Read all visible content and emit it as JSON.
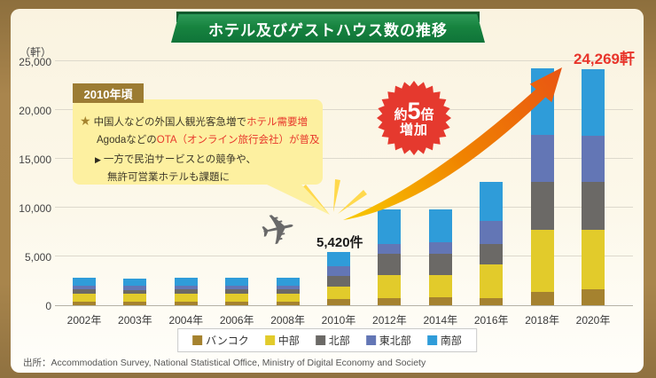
{
  "title": "ホテル及びゲストハウス数の推移",
  "colors": {
    "ribbon_green": "#157a40",
    "frame_gold": "#a8854c",
    "bubble_yellow": "#fdf0a0",
    "badge_brown": "#9c7c33",
    "red_accent": "#e8392c",
    "arrow_orange": "#f08300"
  },
  "y_axis": {
    "unit_label": "（軒）",
    "ticks": [
      {
        "label": "25,000",
        "value": 25000
      },
      {
        "label": "20,000",
        "value": 20000
      },
      {
        "label": "15,000",
        "value": 15000
      },
      {
        "label": "10,000",
        "value": 10000
      },
      {
        "label": "5,000",
        "value": 5000
      },
      {
        "label": "0",
        "value": 0
      }
    ]
  },
  "annotation": {
    "badge": "2010年頃",
    "star_marker": "★",
    "line1_prefix": "中国人などの外国人観光客急増で",
    "line1_red": "ホテル需要増",
    "line2_prefix": "Agodaなどの",
    "line2_red": "OTA（オンライン旅行会社）が普及",
    "arrow_marker": "▶",
    "line3": "一方で民泊サービスとの競争や、",
    "line4": "無許可営業ホテルも課題に"
  },
  "badge_5x": {
    "l1_prefix": "約",
    "l1_big": "5",
    "l1_suffix": "倍",
    "l2": "増加"
  },
  "callouts": {
    "value_2010": "5,420件",
    "value_peak": "24,269軒"
  },
  "icons": {
    "airplane_glyph": "✈"
  },
  "source": "出所：Accommodation Survey, National Statistical Office, Ministry of Digital Economy and Society",
  "legend": [
    {
      "label": "バンコク",
      "color": "#a5822f"
    },
    {
      "label": "中部",
      "color": "#e2cb2b"
    },
    {
      "label": "北部",
      "color": "#6b6966"
    },
    {
      "label": "東北部",
      "color": "#6376b5"
    },
    {
      "label": "南部",
      "color": "#2f9cd9"
    }
  ],
  "chart_data": {
    "type": "bar",
    "stacked": true,
    "title": "ホテル及びゲストハウス数の推移",
    "ylabel": "軒",
    "ylim": [
      0,
      25000
    ],
    "gridlines": [
      5000,
      10000,
      15000,
      20000,
      25000
    ],
    "legend_position": "bottom",
    "categories": [
      "2002年",
      "2003年",
      "2004年",
      "2006年",
      "2008年",
      "2010年",
      "2012年",
      "2014年",
      "2016年",
      "2018年",
      "2020年"
    ],
    "series": [
      {
        "name": "バンコク",
        "color": "#a5822f",
        "values": [
          360,
          350,
          360,
          360,
          360,
          600,
          750,
          800,
          760,
          1360,
          1660
        ]
      },
      {
        "name": "中部",
        "color": "#e2cb2b",
        "values": [
          820,
          790,
          800,
          810,
          800,
          1270,
          2340,
          2290,
          3430,
          6340,
          6060
        ]
      },
      {
        "name": "北部",
        "color": "#6b6966",
        "values": [
          450,
          450,
          460,
          470,
          470,
          1090,
          2210,
          2210,
          2120,
          4930,
          4940
        ]
      },
      {
        "name": "東北部",
        "color": "#6376b5",
        "values": [
          370,
          370,
          380,
          380,
          390,
          1030,
          1000,
          1150,
          2340,
          4850,
          4670
        ]
      },
      {
        "name": "南部",
        "color": "#2f9cd9",
        "values": [
          820,
          780,
          780,
          800,
          780,
          1430,
          3550,
          3390,
          4030,
          6789,
          6850
        ]
      }
    ],
    "annotated_totals": {
      "2010年": 5420,
      "2018年": 24269
    },
    "annotation_note": "約5倍増加"
  }
}
